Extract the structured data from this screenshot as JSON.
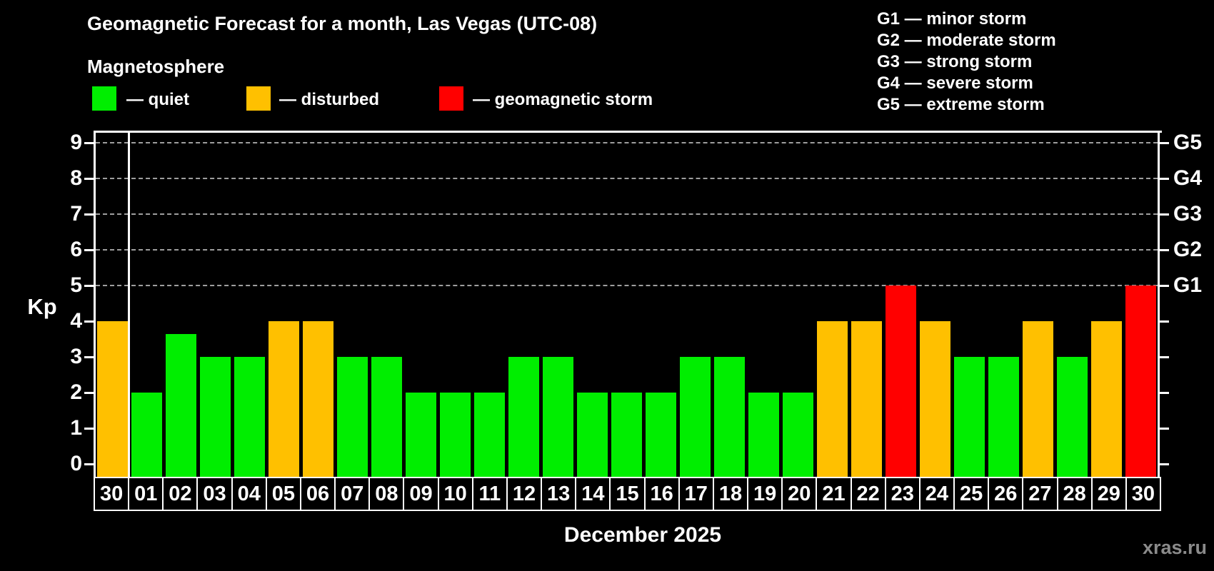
{
  "header": {
    "title": "Geomagnetic Forecast for a month, Las Vegas (UTC-08)",
    "subtitle": "Magnetosphere"
  },
  "legend": {
    "items": [
      {
        "status": "quiet",
        "label": "— quiet"
      },
      {
        "status": "disturbed",
        "label": "— disturbed"
      },
      {
        "status": "storm",
        "label": "— geomagnetic storm"
      }
    ]
  },
  "g_legend": {
    "lines": [
      "G1 — minor storm",
      "G2 — moderate storm",
      "G3 — strong storm",
      "G4 — severe storm",
      "G5 — extreme storm"
    ]
  },
  "colors": {
    "quiet": "#00ee00",
    "disturbed": "#ffc000",
    "storm": "#ff0000",
    "axis": "#ffffff",
    "grid": "#9e9e9e",
    "watermark": "#8b8b8b",
    "background": "#000000"
  },
  "chart_data": {
    "type": "bar",
    "title": "Geomagnetic Forecast for a month, Las Vegas (UTC-08)",
    "ylabel": "Kp",
    "xlabel": "December 2025",
    "ylim": [
      0,
      9.4
    ],
    "yticks": [
      0,
      1,
      2,
      3,
      4,
      5,
      6,
      7,
      8,
      9
    ],
    "gridlines_at": [
      5,
      6,
      7,
      8,
      9
    ],
    "grid": "dashed, storm levels only",
    "legend_position": "top-left",
    "separator_after_index": 0,
    "categories": [
      "30",
      "01",
      "02",
      "03",
      "04",
      "05",
      "06",
      "07",
      "08",
      "09",
      "10",
      "11",
      "12",
      "13",
      "14",
      "15",
      "16",
      "17",
      "18",
      "19",
      "20",
      "21",
      "22",
      "23",
      "24",
      "25",
      "26",
      "27",
      "28",
      "29",
      "30"
    ],
    "values": [
      4,
      2,
      3.65,
      3,
      3,
      4,
      4,
      3,
      3,
      2,
      2,
      2,
      3,
      3,
      2,
      2,
      2,
      3,
      3,
      2,
      2,
      4,
      4,
      5,
      4,
      3,
      3,
      4,
      3,
      4,
      5
    ],
    "statuses": [
      "disturbed",
      "quiet",
      "quiet",
      "quiet",
      "quiet",
      "disturbed",
      "disturbed",
      "quiet",
      "quiet",
      "quiet",
      "quiet",
      "quiet",
      "quiet",
      "quiet",
      "quiet",
      "quiet",
      "quiet",
      "quiet",
      "quiet",
      "quiet",
      "quiet",
      "disturbed",
      "disturbed",
      "storm",
      "disturbed",
      "quiet",
      "quiet",
      "disturbed",
      "quiet",
      "disturbed",
      "storm"
    ],
    "right_axis_labels": [
      {
        "label": "G1",
        "kp": 5
      },
      {
        "label": "G2",
        "kp": 6
      },
      {
        "label": "G3",
        "kp": 7
      },
      {
        "label": "G4",
        "kp": 8
      },
      {
        "label": "G5",
        "kp": 9
      }
    ]
  },
  "watermark": "xras.ru"
}
